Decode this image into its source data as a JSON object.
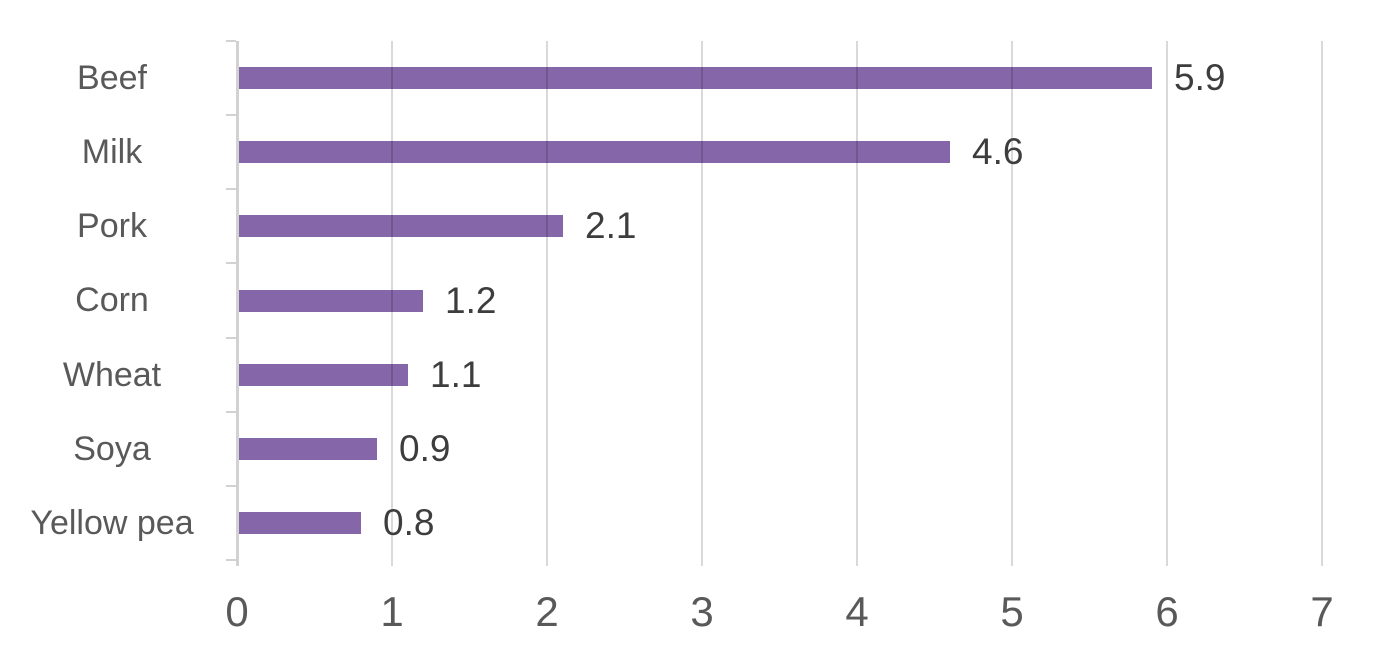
{
  "chart_data": {
    "type": "bar",
    "orientation": "horizontal",
    "title": "",
    "xlabel": "",
    "ylabel": "",
    "categories": [
      "Beef",
      "Milk",
      "Pork",
      "Corn",
      "Wheat",
      "Soya",
      "Yellow pea"
    ],
    "values": [
      5.9,
      4.6,
      2.1,
      1.2,
      1.1,
      0.9,
      0.8
    ],
    "value_labels": [
      "5.9",
      "4.6",
      "2.1",
      "1.2",
      "1.1",
      "0.9",
      "0.8"
    ],
    "x_tick_labels": [
      "0",
      "1",
      "2",
      "3",
      "4",
      "5",
      "6",
      "7"
    ],
    "xlim": [
      0,
      7
    ],
    "grid": true,
    "legend": false,
    "colors": {
      "bar": "#8566A8",
      "gridline": "#D9D9D9",
      "axis_line": "#D2D2D2",
      "category_label": "#595959",
      "x_tick_label": "#595959",
      "value_label": "#3D3D3D",
      "background": "#FFFFFF"
    }
  }
}
